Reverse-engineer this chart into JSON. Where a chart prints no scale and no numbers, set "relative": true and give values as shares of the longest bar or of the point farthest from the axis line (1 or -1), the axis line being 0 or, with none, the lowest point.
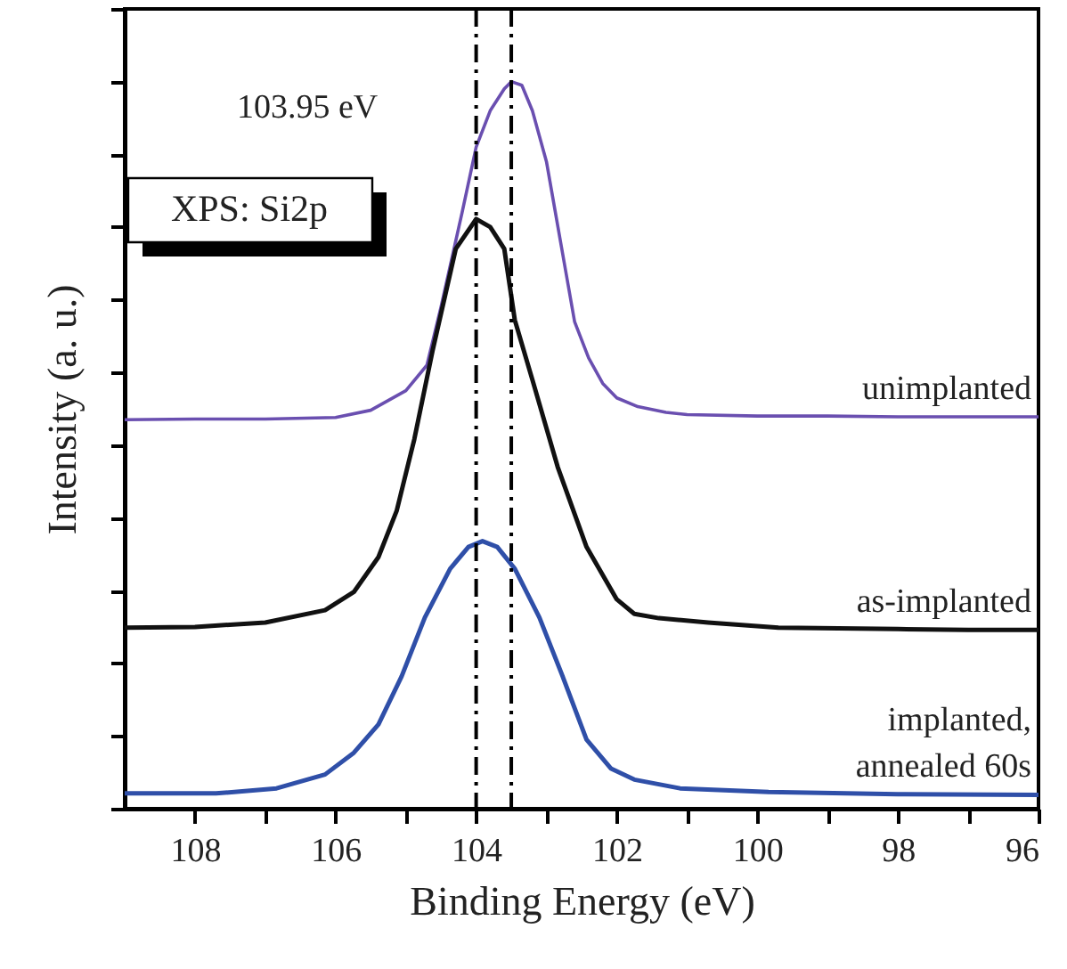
{
  "chart_data": {
    "type": "line",
    "relative": true,
    "xlabel": "Binding Energy (eV)",
    "ylabel": "Intensity (a. u.)",
    "xlim": [
      109,
      96
    ],
    "xticks": [
      108,
      {
        "value": 107,
        "label": null
      },
      106,
      {
        "value": 105,
        "label": null
      },
      104,
      {
        "value": 103,
        "label": null
      },
      102,
      {
        "value": 101,
        "label": null
      },
      100,
      {
        "value": 99,
        "label": null
      },
      98,
      {
        "value": 97,
        "label": null
      },
      96
    ],
    "annotations": [
      "103.95 eV",
      "XPS: Si2p"
    ],
    "ref_lines": [
      {
        "axis": "x",
        "value": 104,
        "color": "#000000",
        "line_style": "dashed"
      },
      {
        "axis": "x",
        "value": 103.5,
        "color": "#000000",
        "line_style": "dashed"
      }
    ],
    "grid": false,
    "marker": "none",
    "line_style": "solid",
    "series": [
      {
        "name": "unimplanted",
        "color": "#6a4fb0",
        "x": [
          109,
          108,
          107,
          106,
          105.5,
          105,
          104.7,
          104.5,
          104.2,
          104,
          103.8,
          103.6,
          103.5,
          103.35,
          103.2,
          103,
          102.8,
          102.6,
          102.4,
          102.2,
          102,
          101.7,
          101.3,
          101,
          100,
          99,
          98,
          97,
          96
        ],
        "values": [
          0.535,
          0.536,
          0.536,
          0.538,
          0.548,
          0.575,
          0.61,
          0.69,
          0.82,
          0.91,
          0.96,
          0.99,
          1.0,
          0.995,
          0.96,
          0.89,
          0.78,
          0.67,
          0.62,
          0.585,
          0.565,
          0.553,
          0.545,
          0.542,
          0.54,
          0.54,
          0.539,
          0.539,
          0.539
        ]
      },
      {
        "name": "as-implanted",
        "color": "#111111",
        "x": [
          109,
          108,
          107,
          106.15,
          105.74,
          105.39,
          105.13,
          104.88,
          104.62,
          104.29,
          104,
          103.8,
          103.6,
          103.45,
          103.2,
          102.84,
          102.43,
          102,
          101.75,
          101.4,
          100.7,
          99.7,
          98,
          97,
          96
        ],
        "values": [
          0.249,
          0.25,
          0.256,
          0.273,
          0.298,
          0.346,
          0.41,
          0.508,
          0.63,
          0.77,
          0.811,
          0.8,
          0.77,
          0.672,
          0.59,
          0.47,
          0.36,
          0.288,
          0.268,
          0.262,
          0.256,
          0.249,
          0.247,
          0.246,
          0.246
        ]
      },
      {
        "name": "implanted,\nannealed 60s",
        "color": "#2f4fa8",
        "x": [
          109,
          107.7,
          106.84,
          106.15,
          105.74,
          105.39,
          105.06,
          104.73,
          104.37,
          104.11,
          103.91,
          103.7,
          103.45,
          103.1,
          102.77,
          102.43,
          102.08,
          101.75,
          101.1,
          99.84,
          98,
          96
        ],
        "values": [
          0.021,
          0.021,
          0.028,
          0.047,
          0.077,
          0.116,
          0.182,
          0.263,
          0.33,
          0.36,
          0.368,
          0.36,
          0.33,
          0.263,
          0.182,
          0.095,
          0.055,
          0.04,
          0.028,
          0.023,
          0.02,
          0.019
        ]
      }
    ]
  }
}
